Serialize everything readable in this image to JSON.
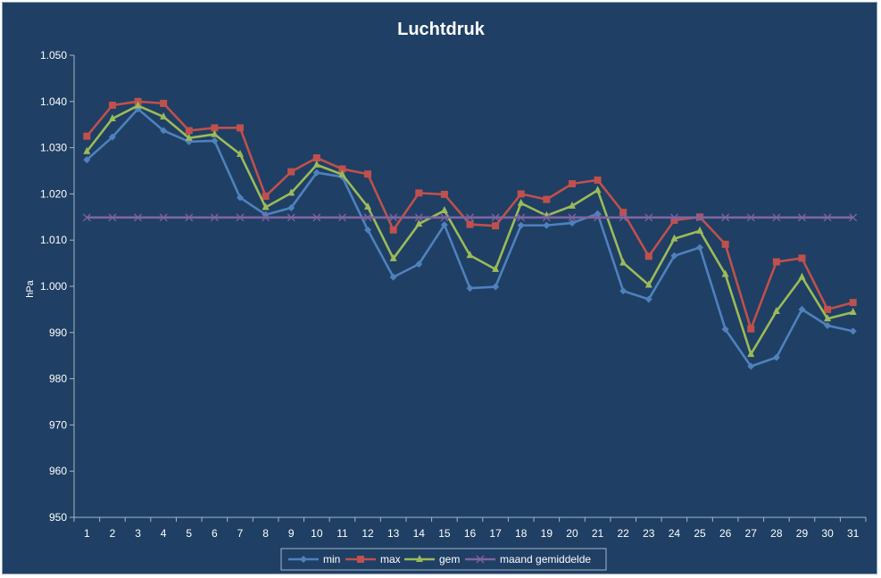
{
  "chart_data": {
    "type": "line",
    "title": "Luchtdruk",
    "xlabel": "",
    "ylabel": "hPa",
    "ylim": [
      950,
      1050
    ],
    "ytick_step": 10,
    "ytick_labels": [
      "950",
      "960",
      "970",
      "980",
      "990",
      "1.000",
      "1.010",
      "1.020",
      "1.030",
      "1.040",
      "1.050"
    ],
    "categories": [
      "1",
      "2",
      "3",
      "4",
      "5",
      "6",
      "7",
      "8",
      "9",
      "10",
      "11",
      "12",
      "13",
      "14",
      "15",
      "16",
      "17",
      "18",
      "19",
      "20",
      "21",
      "22",
      "23",
      "24",
      "25",
      "26",
      "27",
      "28",
      "29",
      "30",
      "31"
    ],
    "grid": false,
    "legend_position": "bottom",
    "series": [
      {
        "name": "min",
        "color": "#4f81bd",
        "marker": "diamond",
        "values": [
          1027.4,
          1032.3,
          1038.4,
          1033.7,
          1031.3,
          1031.5,
          1019.2,
          1015.5,
          1017.0,
          1024.6,
          1023.7,
          1012.2,
          1002.0,
          1004.8,
          1013.3,
          999.6,
          999.9,
          1013.2,
          1013.2,
          1013.7,
          1015.7,
          999.0,
          997.2,
          1006.6,
          1008.4,
          990.7,
          982.7,
          984.6,
          995.0,
          991.5,
          990.3
        ]
      },
      {
        "name": "max",
        "color": "#c0504d",
        "marker": "square",
        "values": [
          1032.5,
          1039.2,
          1040.0,
          1039.6,
          1033.7,
          1034.3,
          1034.3,
          1019.5,
          1024.8,
          1027.8,
          1025.4,
          1024.3,
          1012.2,
          1020.2,
          1019.9,
          1013.4,
          1013.1,
          1020.0,
          1018.8,
          1022.2,
          1023.0,
          1016.0,
          1006.5,
          1014.3,
          1015.0,
          1009.1,
          990.8,
          1005.3,
          1006.1,
          995.0,
          996.5
        ]
      },
      {
        "name": "gem",
        "color": "#9bbb59",
        "marker": "triangle",
        "values": [
          1029.2,
          1036.3,
          1039.1,
          1036.7,
          1032.1,
          1032.9,
          1028.6,
          1017.1,
          1020.2,
          1026.3,
          1024.2,
          1017.2,
          1006.0,
          1013.5,
          1016.4,
          1006.7,
          1003.7,
          1018.0,
          1015.3,
          1017.4,
          1020.8,
          1005.1,
          1000.3,
          1010.3,
          1012.0,
          1002.6,
          985.3,
          994.6,
          1002.0,
          993.0,
          994.4
        ]
      },
      {
        "name": "maand gemiddelde",
        "color": "#8064a2",
        "marker": "x",
        "values": [
          1014.9,
          1014.9,
          1014.9,
          1014.9,
          1014.9,
          1014.9,
          1014.9,
          1014.9,
          1014.9,
          1014.9,
          1014.9,
          1014.9,
          1014.9,
          1014.9,
          1014.9,
          1014.9,
          1014.9,
          1014.9,
          1014.9,
          1014.9,
          1014.9,
          1014.9,
          1014.9,
          1014.9,
          1014.9,
          1014.9,
          1014.9,
          1014.9,
          1014.9,
          1014.9,
          1014.9
        ]
      }
    ]
  }
}
